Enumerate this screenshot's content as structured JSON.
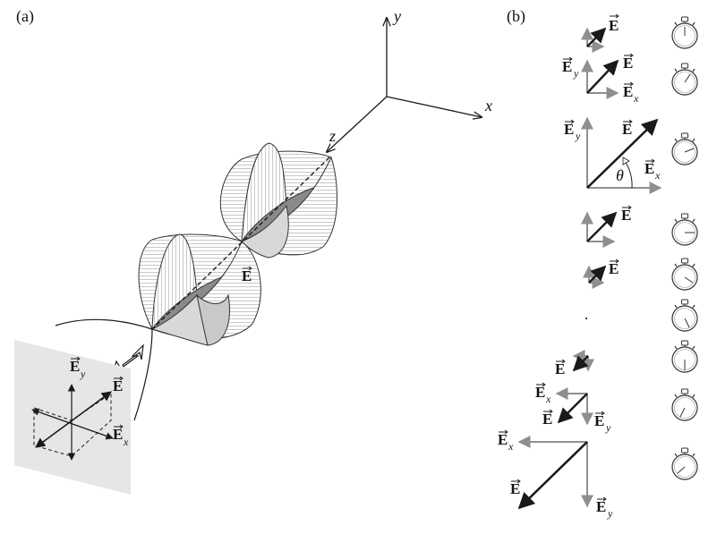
{
  "panel_a": {
    "label": "(a)",
    "axes": {
      "x": "x",
      "y": "y",
      "z": "z"
    },
    "field_label": "E",
    "screen_labels": {
      "ey": "E",
      "ey_sub": "y",
      "e": "E",
      "ex": "E",
      "ex_sub": "x"
    }
  },
  "panel_b": {
    "label": "(b)",
    "vector_label": "E",
    "ex_label": "E",
    "ex_sub": "x",
    "ey_label": "E",
    "ey_sub": "y",
    "theta": "θ",
    "dot": "·"
  },
  "colors": {
    "line": "#1a1a1a",
    "component": "#8f8f8f",
    "screen": "#e6e6e6",
    "wave_fill": "#c9c9c9",
    "wave_dark": "#8a8a8a"
  }
}
